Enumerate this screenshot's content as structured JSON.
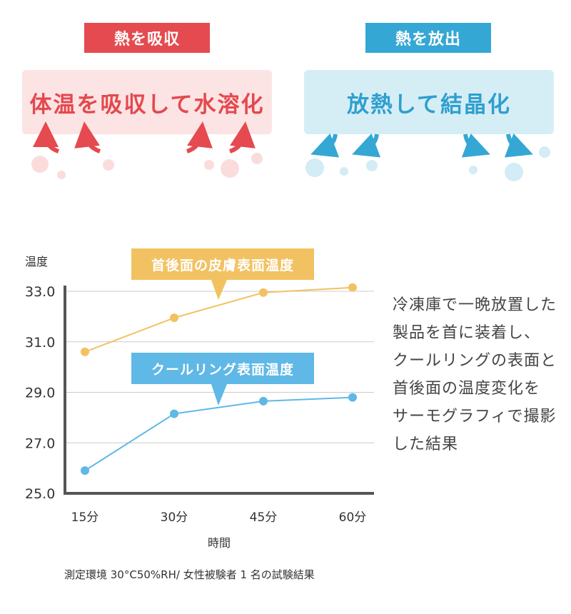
{
  "absorb": {
    "tab_label": "熱を吸収",
    "panel_text": "体温を吸収して水溶化",
    "color": "#e44a4f"
  },
  "release": {
    "tab_label": "熱を放出",
    "panel_text": "放熱して結晶化",
    "color": "#35a7d4"
  },
  "side_text": "冷凍庫で一晩放置した\n製品を首に装着し、\nクールリングの表面と\n首後面の温度変化を\nサーモグラフィで撮影\nした結果",
  "footnote": "測定環境 30°C50%RH/ 女性被験者 1 名の試験結果",
  "chart_data": {
    "type": "line",
    "categories": [
      "15分",
      "30分",
      "45分",
      "60分"
    ],
    "series": [
      {
        "name": "首後面の皮膚表面温度",
        "values": [
          30.6,
          31.95,
          32.95,
          33.15
        ],
        "color": "#f2c262"
      },
      {
        "name": "クールリング表面温度",
        "values": [
          25.9,
          28.15,
          28.65,
          28.8
        ],
        "color": "#5fb8e6"
      }
    ],
    "ylabel": "温度",
    "xlabel": "時間",
    "ylim": [
      25.0,
      33.0
    ],
    "yticks": [
      "25.0",
      "27.0",
      "29.0",
      "31.0",
      "33.0"
    ],
    "grid": true
  }
}
